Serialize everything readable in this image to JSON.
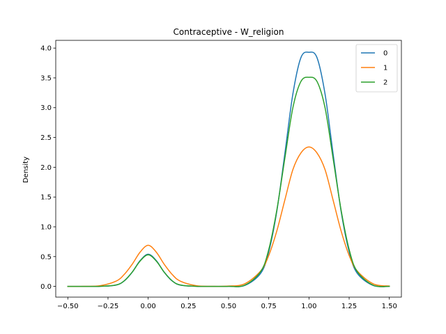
{
  "chart_data": {
    "type": "line",
    "title": "Contraceptive - W_religion",
    "xlabel": "",
    "ylabel": "Density",
    "xlim": [
      -0.575,
      1.575
    ],
    "ylim": [
      -0.18,
      4.13
    ],
    "xticks": [
      -0.5,
      -0.25,
      0.0,
      0.25,
      0.5,
      0.75,
      1.0,
      1.25,
      1.5
    ],
    "xtick_labels": [
      "−0.50",
      "−0.25",
      "0.00",
      "0.25",
      "0.50",
      "0.75",
      "1.00",
      "1.25",
      "1.50"
    ],
    "yticks": [
      0.0,
      0.5,
      1.0,
      1.5,
      2.0,
      2.5,
      3.0,
      3.5,
      4.0
    ],
    "ytick_labels": [
      "0.0",
      "0.5",
      "1.0",
      "1.5",
      "2.0",
      "2.5",
      "3.0",
      "3.5",
      "4.0"
    ],
    "grid": false,
    "legend_position": "top-right",
    "x": [
      -0.5,
      -0.4,
      -0.3,
      -0.2,
      -0.15,
      -0.1,
      -0.05,
      0.0,
      0.05,
      0.1,
      0.15,
      0.2,
      0.3,
      0.4,
      0.5,
      0.6,
      0.7,
      0.75,
      0.8,
      0.85,
      0.9,
      0.95,
      1.0,
      1.05,
      1.1,
      1.15,
      1.2,
      1.25,
      1.3,
      1.4,
      1.5
    ],
    "series": [
      {
        "name": "0",
        "color": "#1f77b4",
        "values": [
          0.0,
          0.0,
          0.001,
          0.022,
          0.089,
          0.236,
          0.434,
          0.54,
          0.434,
          0.236,
          0.089,
          0.022,
          0.001,
          0.0,
          0.001,
          0.015,
          0.221,
          0.583,
          1.26,
          2.23,
          3.23,
          3.84,
          3.93,
          3.84,
          3.23,
          2.23,
          1.26,
          0.583,
          0.221,
          0.015,
          0.001
        ]
      },
      {
        "name": "1",
        "color": "#ff7f0e",
        "values": [
          0.0,
          0.001,
          0.011,
          0.088,
          0.198,
          0.37,
          0.576,
          0.69,
          0.576,
          0.37,
          0.198,
          0.088,
          0.011,
          0.001,
          0.005,
          0.043,
          0.259,
          0.52,
          0.93,
          1.45,
          1.96,
          2.24,
          2.34,
          2.24,
          1.96,
          1.45,
          0.93,
          0.52,
          0.259,
          0.043,
          0.005
        ]
      },
      {
        "name": "2",
        "color": "#2ca02c",
        "values": [
          0.0,
          0.0,
          0.001,
          0.024,
          0.092,
          0.238,
          0.426,
          0.53,
          0.426,
          0.238,
          0.092,
          0.024,
          0.001,
          0.0,
          0.001,
          0.02,
          0.25,
          0.62,
          1.28,
          2.15,
          3.0,
          3.44,
          3.51,
          3.44,
          3.0,
          2.15,
          1.28,
          0.62,
          0.25,
          0.02,
          0.001
        ]
      }
    ]
  }
}
